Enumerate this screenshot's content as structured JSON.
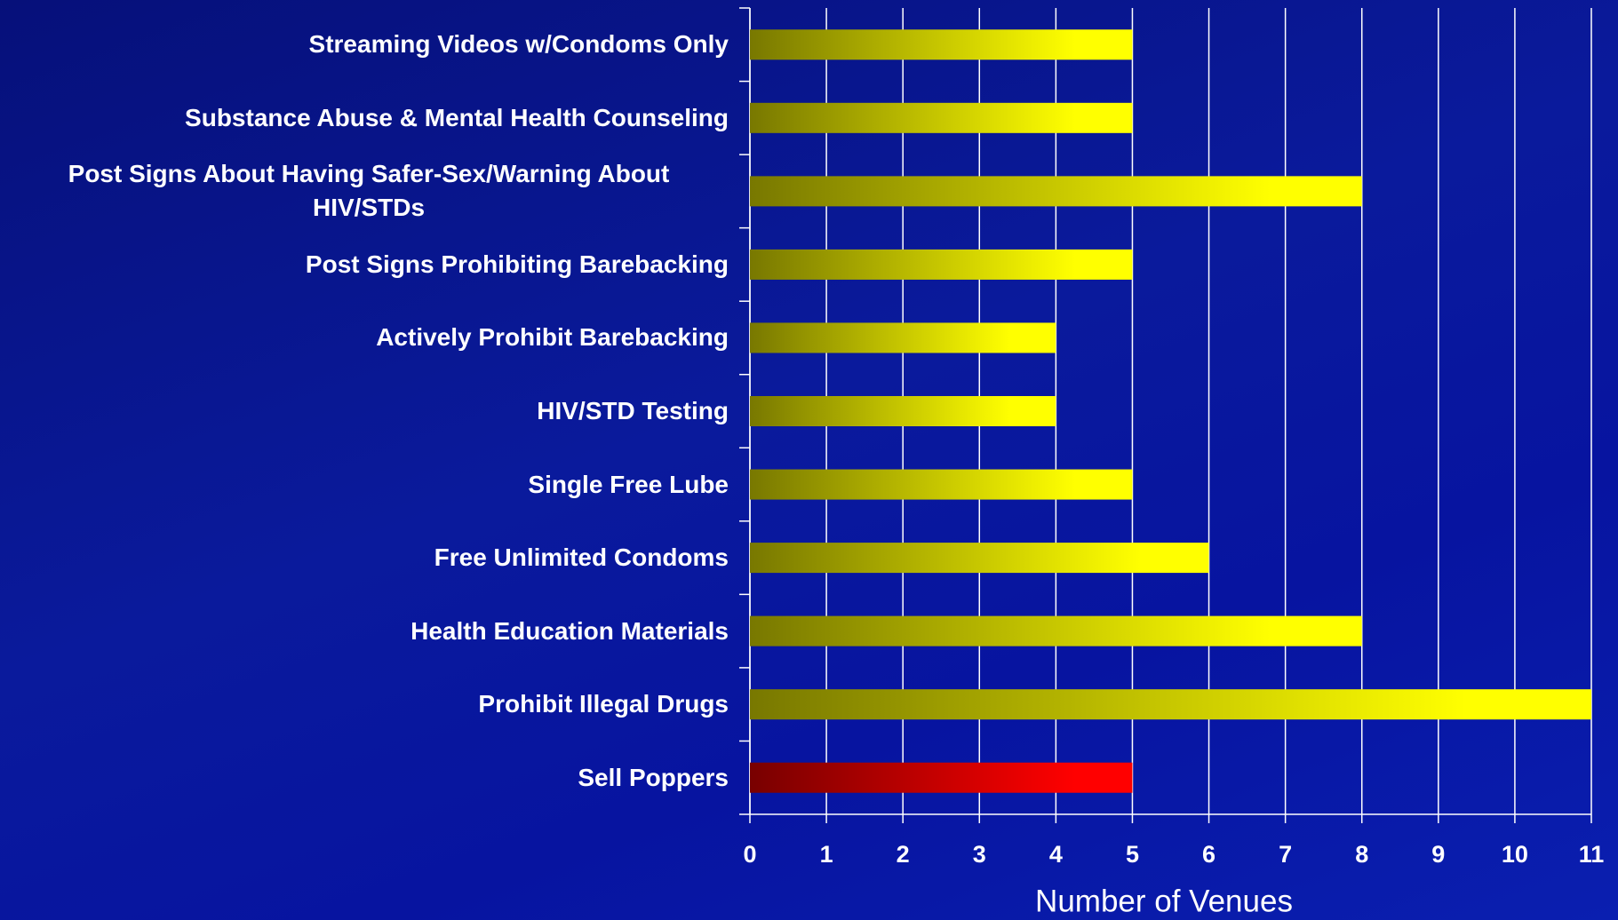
{
  "chart_data": {
    "type": "hbar",
    "categories": [
      "Streaming Videos w/Condoms Only",
      "Substance Abuse & Mental Health Counseling",
      "Post Signs About Having Safer-Sex/Warning About HIV/STDs",
      "Post Signs Prohibiting Barebacking",
      "Actively Prohibit Barebacking",
      "HIV/STD Testing",
      "Single Free Lube",
      "Free Unlimited Condoms",
      "Health Education Materials",
      "Prohibit Illegal Drugs",
      "Sell Poppers"
    ],
    "values": [
      5,
      5,
      8,
      5,
      4,
      4,
      5,
      6,
      8,
      11,
      5
    ],
    "colors": [
      "#ffff00",
      "#ffff00",
      "#ffff00",
      "#ffff00",
      "#ffff00",
      "#ffff00",
      "#ffff00",
      "#ffff00",
      "#ffff00",
      "#ffff00",
      "#ff0000"
    ],
    "xlabel": "Number of Venues",
    "xlim": [
      0,
      11
    ],
    "xticks": [
      0,
      1,
      2,
      3,
      4,
      5,
      6,
      7,
      8,
      9,
      10,
      11
    ],
    "grid": true
  }
}
